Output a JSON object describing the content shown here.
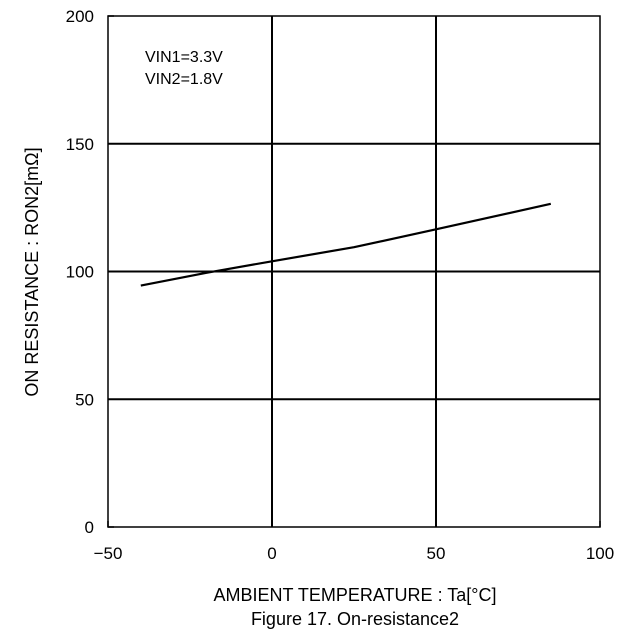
{
  "chart_data": {
    "type": "line",
    "title": "",
    "caption": "Figure 17. On-resistance2",
    "xlabel": "AMBIENT TEMPERATURE : Ta[°C]",
    "ylabel": "ON RESISTANCE : RON2[mΩ]",
    "xlim": [
      -50,
      100
    ],
    "ylim": [
      0,
      200
    ],
    "x_ticks": [
      -50,
      0,
      50,
      100
    ],
    "x_tick_labels": [
      "−50",
      "0",
      "50",
      "100"
    ],
    "y_ticks": [
      0,
      50,
      100,
      150,
      200
    ],
    "y_tick_labels": [
      "0",
      "50",
      "100",
      "150",
      "200"
    ],
    "grid": true,
    "annotations": [
      "VIN1=3.3V",
      "VIN2=1.8V"
    ],
    "series": [
      {
        "color": "#000000",
        "x": [
          -40,
          -20,
          0,
          25,
          50,
          85
        ],
        "y": [
          94.5,
          99.5,
          104,
          109.5,
          116.5,
          126.5
        ]
      }
    ]
  }
}
